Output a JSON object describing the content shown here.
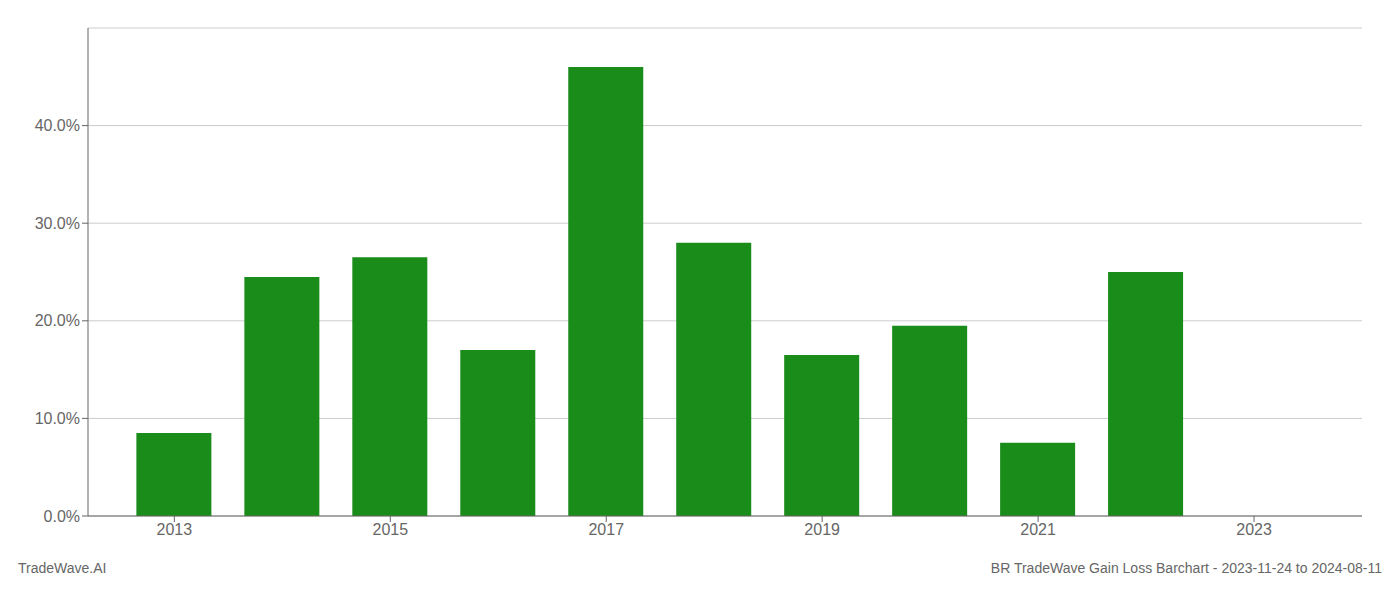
{
  "chart_data": {
    "type": "bar",
    "x": [
      2013,
      2014,
      2015,
      2016,
      2017,
      2018,
      2019,
      2020,
      2021,
      2022
    ],
    "values": [
      0.085,
      0.245,
      0.265,
      0.17,
      0.46,
      0.28,
      0.165,
      0.195,
      0.075,
      0.25
    ],
    "color": "#1a8c1a",
    "xlim": [
      2012.2,
      2024.0
    ],
    "xticks": [
      2013,
      2015,
      2017,
      2019,
      2021,
      2023
    ],
    "ylim": [
      0.0,
      0.5
    ],
    "yticks": [
      {
        "value": 0.0,
        "label": "0.0%"
      },
      {
        "value": 0.1,
        "label": "10.0%"
      },
      {
        "value": 0.2,
        "label": "20.0%"
      },
      {
        "value": 0.3,
        "label": "30.0%"
      },
      {
        "value": 0.4,
        "label": "40.0%"
      }
    ],
    "grid": "y",
    "annotations": [
      "TradeWave.AI",
      "BR TradeWave Gain Loss Barchart - 2023-11-24 to 2024-08-11"
    ]
  }
}
